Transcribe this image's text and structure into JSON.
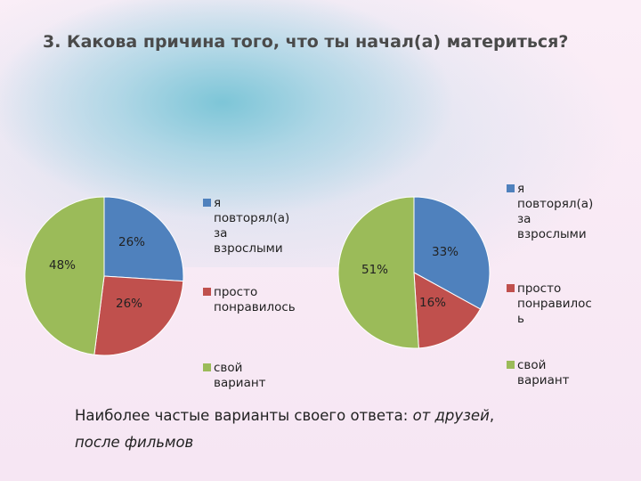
{
  "title": "3. Какова причина того, что ты начал(а) материться?",
  "note": {
    "prefix": "Наиболее частые варианты своего ответа: ",
    "emph1": "от друзей",
    "sep": ",",
    "emph2": "после фильмов"
  },
  "colors": {
    "blue": "#4f81bd",
    "red": "#c0504d",
    "green": "#9bbb59"
  },
  "chart_data": [
    {
      "type": "pie",
      "categories": [
        "я повторял(а) за взрослыми",
        "просто понравилось",
        "свой вариант"
      ],
      "values": [
        26,
        26,
        48
      ],
      "labels": [
        "26%",
        "26%",
        "48%"
      ],
      "legend_position": "right",
      "legend_lines": [
        [
          "я повторял(а)",
          "за",
          "взрослыми"
        ],
        [
          "просто",
          "понравилось"
        ],
        [
          "свой вариант"
        ]
      ]
    },
    {
      "type": "pie",
      "categories": [
        "я повторял(а) за взрослыми",
        "просто понравилось",
        "свой вариант"
      ],
      "values": [
        33,
        16,
        51
      ],
      "labels": [
        "33%",
        "16%",
        "51%"
      ],
      "legend_position": "right",
      "legend_lines": [
        [
          "я",
          "повторял(а)",
          "за",
          "взрослыми"
        ],
        [
          "просто",
          "понравилос",
          "ь"
        ],
        [
          "свой",
          "вариант"
        ]
      ]
    }
  ]
}
